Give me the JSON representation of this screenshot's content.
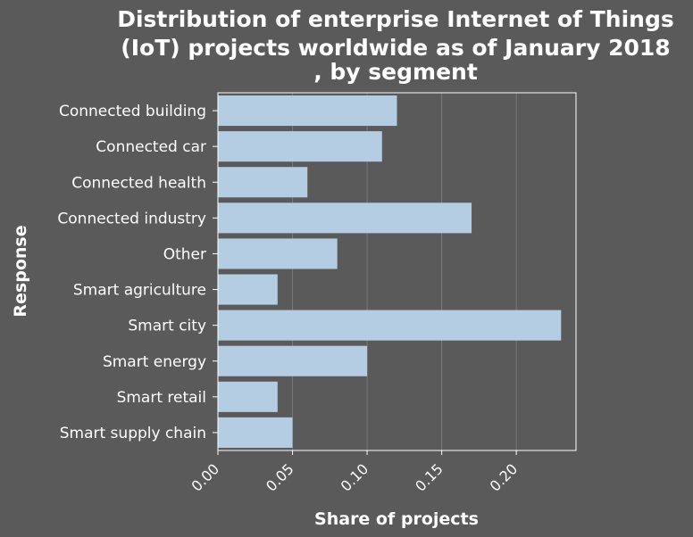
{
  "chart_data": {
    "type": "bar",
    "orientation": "horizontal",
    "title_lines": [
      "Distribution of enterprise Internet of Things",
      "(IoT) projects worldwide as of January 2018",
      ", by segment"
    ],
    "xlabel": "Share of projects",
    "ylabel": "Response",
    "categories": [
      "Connected building",
      "Connected car",
      "Connected health",
      "Connected industry",
      "Other",
      "Smart agriculture",
      "Smart city",
      "Smart energy",
      "Smart retail",
      "Smart supply chain"
    ],
    "values": [
      0.12,
      0.11,
      0.06,
      0.17,
      0.08,
      0.04,
      0.23,
      0.1,
      0.04,
      0.05
    ],
    "x_ticks": [
      "0.00",
      "0.05",
      "0.10",
      "0.15",
      "0.20"
    ],
    "xlim": [
      0,
      0.24
    ],
    "grid": "vertical",
    "legend": "none",
    "colors": {
      "background": "#5a5a5a",
      "bar": "#b4cde3",
      "grid": "#7a7a7a",
      "frame": "#ffffff",
      "text": "#ffffff"
    }
  }
}
